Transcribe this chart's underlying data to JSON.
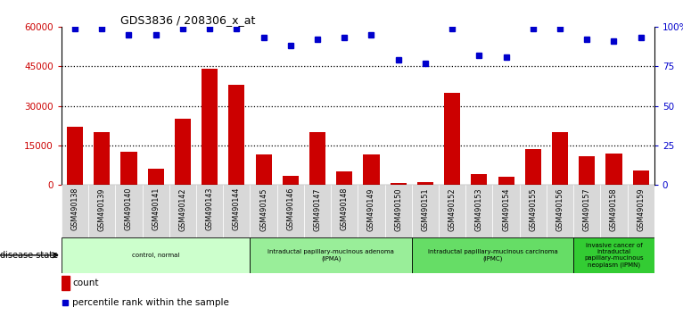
{
  "title": "GDS3836 / 208306_x_at",
  "samples": [
    "GSM490138",
    "GSM490139",
    "GSM490140",
    "GSM490141",
    "GSM490142",
    "GSM490143",
    "GSM490144",
    "GSM490145",
    "GSM490146",
    "GSM490147",
    "GSM490148",
    "GSM490149",
    "GSM490150",
    "GSM490151",
    "GSM490152",
    "GSM490153",
    "GSM490154",
    "GSM490155",
    "GSM490156",
    "GSM490157",
    "GSM490158",
    "GSM490159"
  ],
  "counts": [
    22000,
    20000,
    12500,
    6000,
    25000,
    44000,
    38000,
    11500,
    3500,
    20000,
    5000,
    11500,
    800,
    900,
    35000,
    4000,
    3000,
    13500,
    20000,
    11000,
    12000,
    5500
  ],
  "percentile_ranks": [
    99,
    99,
    95,
    95,
    99,
    99,
    99,
    93,
    88,
    92,
    93,
    95,
    79,
    77,
    99,
    82,
    81,
    99,
    99,
    92,
    91,
    93
  ],
  "disease_groups": [
    {
      "label": "control, normal",
      "start": 0,
      "end": 7,
      "color": "#ccffcc"
    },
    {
      "label": "intraductal papillary-mucinous adenoma\n(IPMA)",
      "start": 7,
      "end": 13,
      "color": "#99ee99"
    },
    {
      "label": "intraductal papillary-mucinous carcinoma\n(IPMC)",
      "start": 13,
      "end": 19,
      "color": "#66dd66"
    },
    {
      "label": "invasive cancer of\nintraductal\npapillary-mucinous\nneoplasm (IPMN)",
      "start": 19,
      "end": 22,
      "color": "#33cc33"
    }
  ],
  "bar_color": "#cc0000",
  "dot_color": "#0000cc",
  "ylim_left": [
    0,
    60000
  ],
  "ylim_right": [
    0,
    100
  ],
  "yticks_left": [
    0,
    15000,
    30000,
    45000,
    60000
  ],
  "ytick_labels_left": [
    "0",
    "15000",
    "30000",
    "45000",
    "60000"
  ],
  "yticks_right": [
    0,
    25,
    50,
    75,
    100
  ],
  "ytick_labels_right": [
    "0",
    "25",
    "50",
    "75",
    "100%"
  ],
  "hlines": [
    15000,
    30000,
    45000
  ],
  "plot_bg": "#ffffff",
  "fig_bg": "#ffffff",
  "xtick_bg": "#d8d8d8"
}
